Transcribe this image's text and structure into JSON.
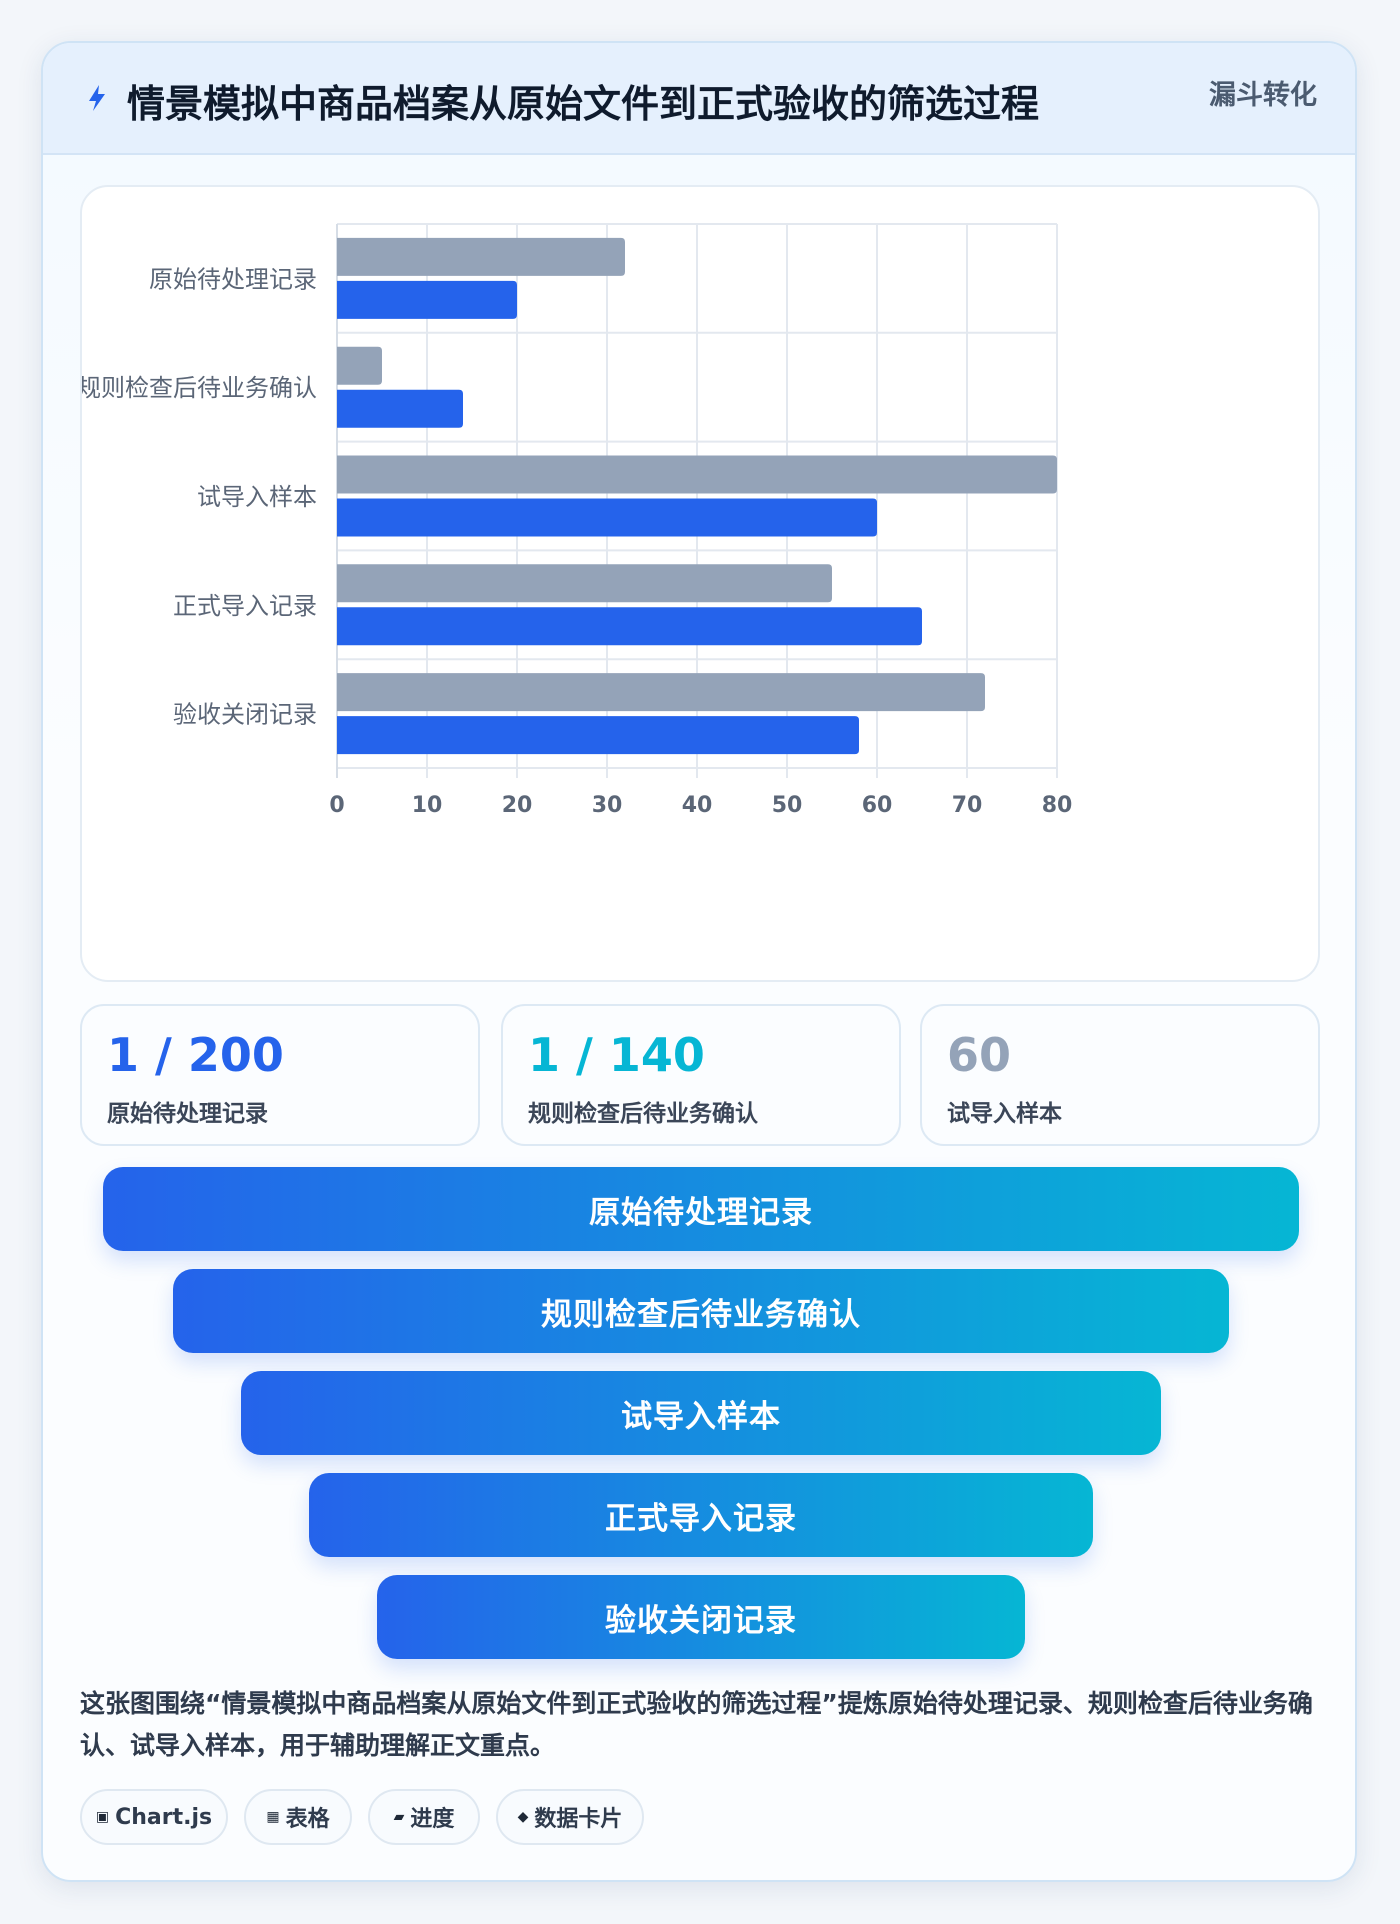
{
  "header": {
    "title": "情景模拟中商品档案从原始文件到正式验收的筛选过程",
    "tag": "漏斗转化",
    "icon": "lightning-icon"
  },
  "chart_data": {
    "type": "bar",
    "orientation": "horizontal",
    "categories": [
      "原始待处理记录",
      "规则检查后待业务确认",
      "试导入样本",
      "正式导入记录",
      "验收关闭记录"
    ],
    "series": [
      {
        "values": [
          32,
          5,
          80,
          55,
          72
        ],
        "color": "#94a3b8"
      },
      {
        "values": [
          20,
          14,
          60,
          65,
          58
        ],
        "color": "#2563eb"
      }
    ],
    "xlim": [
      0,
      80
    ],
    "xticks": [
      0,
      10,
      20,
      30,
      40,
      50,
      60,
      70,
      80
    ],
    "grid": true,
    "legend": "none"
  },
  "stats": [
    {
      "value": "1 / 200",
      "label": "原始待处理记录",
      "color": "#2563eb"
    },
    {
      "value": "1 / 140",
      "label": "规则检查后待业务确认",
      "color": "#06b6d4"
    },
    {
      "value": "60",
      "label": "试导入样本",
      "color": "#94a3b8"
    }
  ],
  "funnel": [
    "原始待处理记录",
    "规则检查后待业务确认",
    "试导入样本",
    "正式导入记录",
    "验收关闭记录"
  ],
  "description": "这张图围绕“情景模拟中商品档案从原始文件到正式验收的筛选过程”提炼原始待处理记录、规则检查后待业务确认、试导入样本，用于辅助理解正文重点。",
  "tags": [
    {
      "icon": "▣",
      "icon_name": "chart-icon",
      "label": "Chart.js"
    },
    {
      "icon": "▦",
      "icon_name": "table-icon",
      "label": "表格"
    },
    {
      "icon": "▰",
      "icon_name": "progress-icon",
      "label": "进度"
    },
    {
      "icon": "◆",
      "icon_name": "diamond-icon",
      "label": "数据卡片"
    }
  ],
  "colors": {
    "accent": "#2563eb",
    "accent2": "#06b6d4",
    "muted": "#94a3b8"
  }
}
